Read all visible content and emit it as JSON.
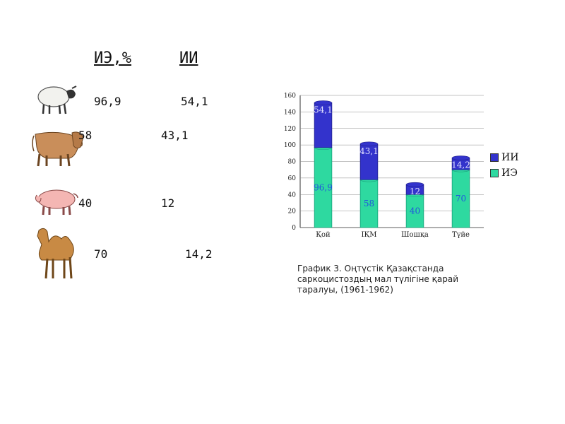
{
  "table": {
    "header_ie": "ИЭ,%",
    "header_ii": "ИИ",
    "rows": [
      {
        "animal_icon": "sheep-icon",
        "ie": "96,9",
        "ii": "54,1"
      },
      {
        "animal_icon": "cow-icon",
        "ie": "58",
        "ii": "43,1"
      },
      {
        "animal_icon": "pig-icon",
        "ie": "40",
        "ii": "12"
      },
      {
        "animal_icon": "camel-icon",
        "ie": "70",
        "ii": "14,2"
      }
    ]
  },
  "caption": "График 3. Оңтүстік Қазақстанда саркоцистоздың мал түлігіне қарай таралуы, (1961-1962)",
  "chart_data": {
    "type": "bar",
    "stacked": true,
    "categories": [
      "Қой",
      "ІҚМ",
      "Шошқа",
      "Түйе"
    ],
    "series": [
      {
        "name": "ИЭ",
        "values": [
          96.9,
          58,
          40,
          70
        ],
        "color": "#2ed9a0"
      },
      {
        "name": "ИИ",
        "values": [
          54.1,
          43.1,
          12,
          14.2
        ],
        "color": "#3333cc"
      }
    ],
    "data_labels": {
      "ИЭ": [
        "96,9",
        "58",
        "40",
        "70"
      ],
      "ИИ": [
        "54,1",
        "43,1",
        "12",
        "14,2"
      ]
    },
    "ylim": [
      0,
      160
    ],
    "yticks": [
      0,
      20,
      40,
      60,
      80,
      100,
      120,
      140,
      160
    ],
    "grid": true,
    "legend_position": "right",
    "xlabel": "",
    "ylabel": ""
  }
}
